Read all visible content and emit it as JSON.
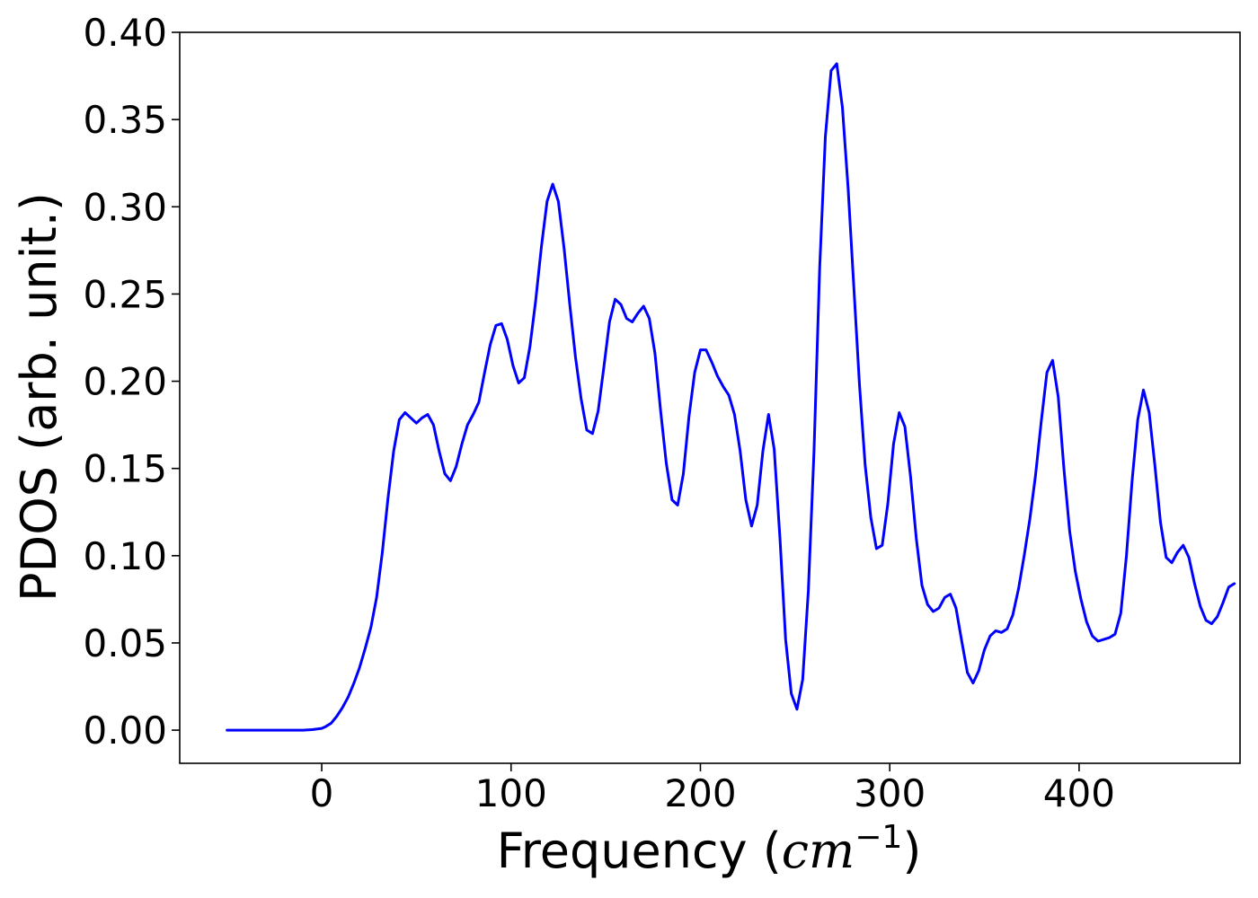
{
  "chart_data": {
    "type": "line",
    "xlabel": {
      "prefix": "Frequency (",
      "unit": "cm",
      "exponent": "−1",
      "suffix": ")"
    },
    "ylabel": "PDOS (arb. unit.)",
    "xlim": [
      -75,
      485
    ],
    "ylim": [
      -0.019,
      0.4
    ],
    "xticks": [
      0,
      100,
      200,
      300,
      400
    ],
    "xtick_labels": [
      "0",
      "100",
      "200",
      "300",
      "400"
    ],
    "yticks": [
      0.0,
      0.05,
      0.1,
      0.15,
      0.2,
      0.25,
      0.3,
      0.35,
      0.4
    ],
    "ytick_labels": [
      "0.00",
      "0.05",
      "0.10",
      "0.15",
      "0.20",
      "0.25",
      "0.30",
      "0.35",
      "0.40"
    ],
    "grid": false,
    "line_color": "#0000ff",
    "series": [
      {
        "points": [
          [
            -50,
            0.0
          ],
          [
            -10,
            0.0
          ],
          [
            -5,
            0.0003
          ],
          [
            0,
            0.001
          ],
          [
            2,
            0.002
          ],
          [
            5,
            0.004
          ],
          [
            8,
            0.008
          ],
          [
            11,
            0.013
          ],
          [
            14,
            0.019
          ],
          [
            17,
            0.027
          ],
          [
            20,
            0.036
          ],
          [
            23,
            0.047
          ],
          [
            26,
            0.059
          ],
          [
            29,
            0.076
          ],
          [
            32,
            0.102
          ],
          [
            35,
            0.133
          ],
          [
            38,
            0.16
          ],
          [
            41,
            0.178
          ],
          [
            44,
            0.182
          ],
          [
            47,
            0.179
          ],
          [
            50,
            0.176
          ],
          [
            53,
            0.179
          ],
          [
            56,
            0.181
          ],
          [
            59,
            0.175
          ],
          [
            62,
            0.16
          ],
          [
            65,
            0.147
          ],
          [
            68,
            0.143
          ],
          [
            71,
            0.151
          ],
          [
            74,
            0.164
          ],
          [
            77,
            0.175
          ],
          [
            80,
            0.181
          ],
          [
            83,
            0.188
          ],
          [
            86,
            0.205
          ],
          [
            89,
            0.221
          ],
          [
            92,
            0.232
          ],
          [
            95,
            0.233
          ],
          [
            98,
            0.224
          ],
          [
            101,
            0.209
          ],
          [
            104,
            0.199
          ],
          [
            107,
            0.202
          ],
          [
            110,
            0.22
          ],
          [
            113,
            0.246
          ],
          [
            116,
            0.277
          ],
          [
            119,
            0.303
          ],
          [
            122,
            0.313
          ],
          [
            125,
            0.303
          ],
          [
            128,
            0.276
          ],
          [
            131,
            0.244
          ],
          [
            134,
            0.214
          ],
          [
            137,
            0.19
          ],
          [
            140,
            0.172
          ],
          [
            143,
            0.17
          ],
          [
            146,
            0.183
          ],
          [
            149,
            0.208
          ],
          [
            152,
            0.234
          ],
          [
            155,
            0.247
          ],
          [
            158,
            0.244
          ],
          [
            161,
            0.236
          ],
          [
            164,
            0.234
          ],
          [
            167,
            0.239
          ],
          [
            170,
            0.243
          ],
          [
            173,
            0.236
          ],
          [
            176,
            0.216
          ],
          [
            179,
            0.183
          ],
          [
            182,
            0.153
          ],
          [
            185,
            0.132
          ],
          [
            188,
            0.129
          ],
          [
            191,
            0.147
          ],
          [
            194,
            0.18
          ],
          [
            197,
            0.205
          ],
          [
            200,
            0.218
          ],
          [
            203,
            0.218
          ],
          [
            206,
            0.211
          ],
          [
            209,
            0.203
          ],
          [
            212,
            0.197
          ],
          [
            215,
            0.192
          ],
          [
            218,
            0.181
          ],
          [
            221,
            0.16
          ],
          [
            224,
            0.132
          ],
          [
            227,
            0.117
          ],
          [
            230,
            0.129
          ],
          [
            233,
            0.16
          ],
          [
            236,
            0.181
          ],
          [
            239,
            0.161
          ],
          [
            242,
            0.11
          ],
          [
            245,
            0.052
          ],
          [
            248,
            0.021
          ],
          [
            251,
            0.012
          ],
          [
            254,
            0.029
          ],
          [
            257,
            0.08
          ],
          [
            260,
            0.16
          ],
          [
            263,
            0.265
          ],
          [
            266,
            0.34
          ],
          [
            269,
            0.378
          ],
          [
            272,
            0.382
          ],
          [
            275,
            0.357
          ],
          [
            278,
            0.311
          ],
          [
            281,
            0.255
          ],
          [
            284,
            0.198
          ],
          [
            287,
            0.152
          ],
          [
            290,
            0.122
          ],
          [
            293,
            0.104
          ],
          [
            296,
            0.106
          ],
          [
            299,
            0.13
          ],
          [
            302,
            0.164
          ],
          [
            305,
            0.182
          ],
          [
            308,
            0.174
          ],
          [
            311,
            0.145
          ],
          [
            314,
            0.11
          ],
          [
            317,
            0.083
          ],
          [
            320,
            0.072
          ],
          [
            323,
            0.068
          ],
          [
            326,
            0.07
          ],
          [
            329,
            0.076
          ],
          [
            332,
            0.078
          ],
          [
            335,
            0.07
          ],
          [
            338,
            0.051
          ],
          [
            341,
            0.033
          ],
          [
            344,
            0.027
          ],
          [
            347,
            0.034
          ],
          [
            350,
            0.046
          ],
          [
            353,
            0.054
          ],
          [
            356,
            0.057
          ],
          [
            359,
            0.056
          ],
          [
            362,
            0.058
          ],
          [
            365,
            0.066
          ],
          [
            368,
            0.081
          ],
          [
            371,
            0.1
          ],
          [
            374,
            0.121
          ],
          [
            377,
            0.146
          ],
          [
            380,
            0.177
          ],
          [
            383,
            0.205
          ],
          [
            386,
            0.212
          ],
          [
            389,
            0.191
          ],
          [
            392,
            0.15
          ],
          [
            395,
            0.114
          ],
          [
            398,
            0.091
          ],
          [
            401,
            0.075
          ],
          [
            404,
            0.062
          ],
          [
            407,
            0.054
          ],
          [
            410,
            0.051
          ],
          [
            413,
            0.052
          ],
          [
            416,
            0.053
          ],
          [
            419,
            0.055
          ],
          [
            422,
            0.067
          ],
          [
            425,
            0.1
          ],
          [
            428,
            0.143
          ],
          [
            431,
            0.178
          ],
          [
            434,
            0.195
          ],
          [
            437,
            0.182
          ],
          [
            440,
            0.152
          ],
          [
            443,
            0.119
          ],
          [
            446,
            0.099
          ],
          [
            449,
            0.096
          ],
          [
            452,
            0.102
          ],
          [
            455,
            0.106
          ],
          [
            458,
            0.099
          ],
          [
            461,
            0.084
          ],
          [
            464,
            0.071
          ],
          [
            467,
            0.063
          ],
          [
            470,
            0.061
          ],
          [
            473,
            0.065
          ],
          [
            476,
            0.073
          ],
          [
            479,
            0.082
          ],
          [
            482,
            0.084
          ]
        ]
      }
    ]
  }
}
